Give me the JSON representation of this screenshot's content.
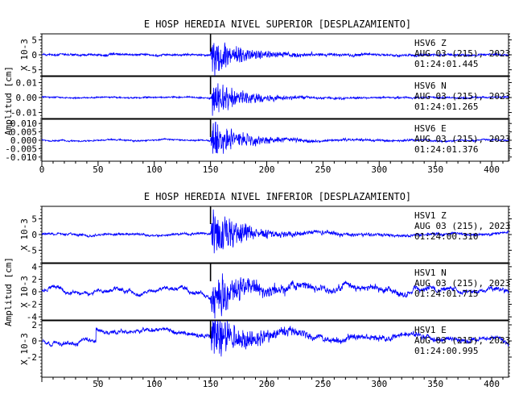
{
  "figure": {
    "ylabel": "Amplitud [cm]"
  },
  "chart_data": [
    {
      "type": "line",
      "title": "E HOSP HEREDIA NIVEL SUPERIOR [DESPLAZAMIENTO]",
      "x_ticks": [
        "0",
        "50",
        "100",
        "150",
        "200",
        "250",
        "300",
        "350",
        "400"
      ],
      "xlim": [
        0,
        415
      ],
      "grid": false,
      "trace_color": "#0000ff",
      "panels": [
        {
          "station": "HSV6",
          "component": "Z",
          "date": "AUG 03 (215), 2023",
          "time": "01:24:01.445",
          "scale_label": "X 10-3",
          "ylim": [
            -7,
            7
          ],
          "y_ticks": [
            -5,
            0,
            5
          ],
          "y_tick_labels": [
            "-5",
            "0",
            "5"
          ],
          "onset_s": 150,
          "peak_amplitude": 6.5,
          "pre_event_noise": 0.4,
          "late_coda_noise": 0.5,
          "low_freq_wander": 0.2,
          "step": null
        },
        {
          "station": "HSV6",
          "component": "N",
          "date": "AUG 03 (215), 2023",
          "time": "01:24:01.265",
          "scale_label": "",
          "ylim": [
            -0.014,
            0.014
          ],
          "y_ticks": [
            -0.01,
            0,
            0.01
          ],
          "y_tick_labels": [
            "-0.01",
            "0.00",
            "0.01"
          ],
          "onset_s": 150,
          "peak_amplitude": 0.013,
          "pre_event_noise": 0.0006,
          "late_coda_noise": 0.0008,
          "low_freq_wander": 0.0003,
          "step": null
        },
        {
          "station": "HSV6",
          "component": "E",
          "date": "AUG 03 (215), 2023",
          "time": "01:24:01.376",
          "scale_label": "",
          "ylim": [
            -0.0125,
            0.0125
          ],
          "y_ticks": [
            -0.01,
            -0.005,
            0,
            0.005,
            0.01
          ],
          "y_tick_labels": [
            "-0.010",
            "-0.005",
            "0.000",
            "0.005",
            "0.010"
          ],
          "onset_s": 150,
          "peak_amplitude": 0.011,
          "pre_event_noise": 0.0005,
          "late_coda_noise": 0.0009,
          "low_freq_wander": 0.0004,
          "step": null
        }
      ]
    },
    {
      "type": "line",
      "title": "E HOSP HEREDIA NIVEL INFERIOR [DESPLAZAMIENTO]",
      "x_ticks": [
        "50",
        "100",
        "150",
        "200",
        "250",
        "300",
        "350",
        "400"
      ],
      "xlim": [
        0,
        415
      ],
      "grid": false,
      "trace_color": "#0000ff",
      "panels": [
        {
          "station": "HSV1",
          "component": "Z",
          "date": "AUG 03 (215), 2023",
          "time": "01:24:00.310",
          "scale_label": "X 10-3",
          "ylim": [
            -9,
            9
          ],
          "y_ticks": [
            -5,
            0,
            5
          ],
          "y_tick_labels": [
            "-5",
            "0",
            "5"
          ],
          "onset_s": 150,
          "peak_amplitude": 8,
          "pre_event_noise": 0.4,
          "late_coda_noise": 0.7,
          "low_freq_wander": 0.3,
          "step": null
        },
        {
          "station": "HSV1",
          "component": "N",
          "date": "AUG 03 (215), 2023",
          "time": "01:24:01.715",
          "scale_label": "X 10-3",
          "ylim": [
            -4.5,
            4.5
          ],
          "y_ticks": [
            -4,
            -2,
            0,
            2,
            4
          ],
          "y_tick_labels": [
            "-4",
            "-2",
            "0",
            "2",
            "4"
          ],
          "onset_s": 150,
          "peak_amplitude": 3.8,
          "pre_event_noise": 0.3,
          "late_coda_noise": 0.6,
          "low_freq_wander": 0.6,
          "step": null
        },
        {
          "station": "HSV1",
          "component": "E",
          "date": "AUG 03 (215), 2023",
          "time": "01:24:00.995",
          "scale_label": "X 10-3",
          "ylim": [
            -4.5,
            2.5
          ],
          "y_ticks": [
            -2,
            0,
            2
          ],
          "y_tick_labels": [
            "-2",
            "0",
            "2"
          ],
          "onset_s": 150,
          "peak_amplitude": 3.2,
          "pre_event_noise": 0.25,
          "late_coda_noise": 0.5,
          "low_freq_wander": 0.4,
          "step": {
            "at_s": 48,
            "from": -0.3,
            "to": 1.2
          }
        }
      ]
    }
  ]
}
